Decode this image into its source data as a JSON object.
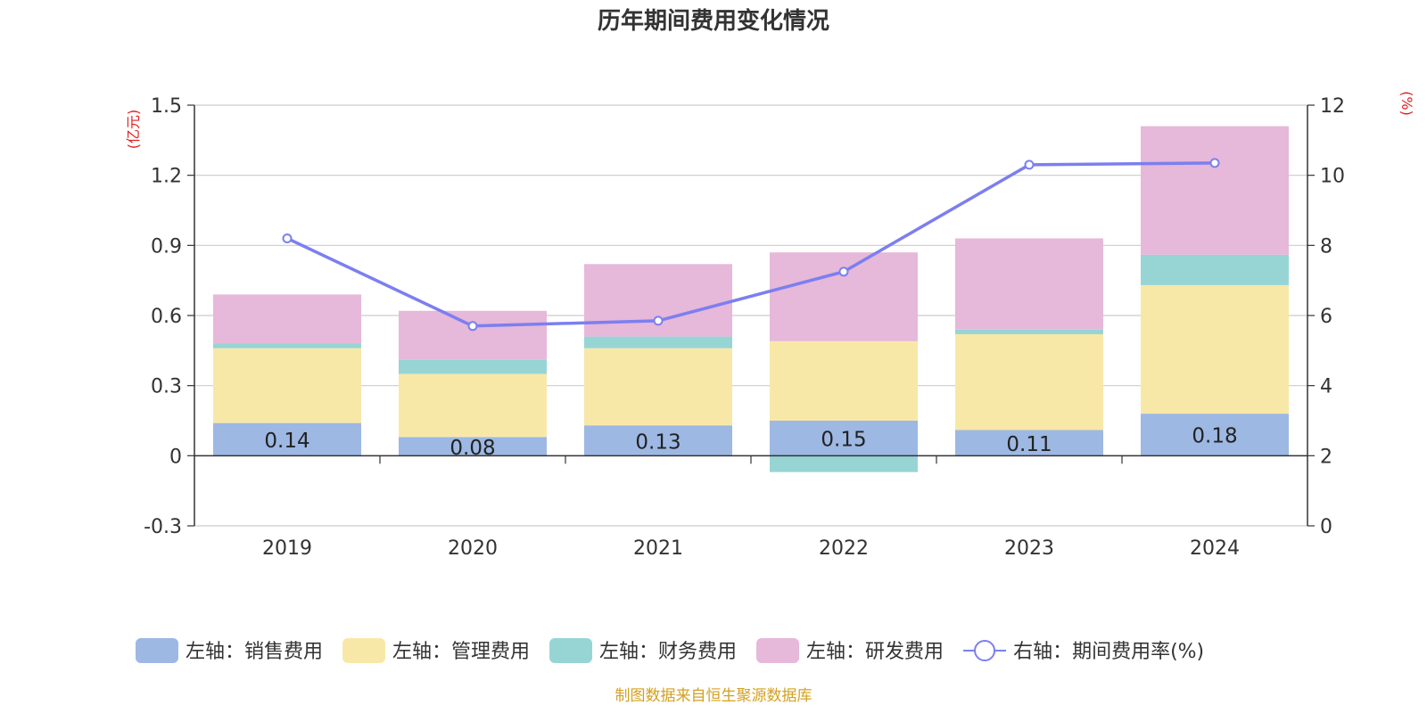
{
  "chart_data": {
    "type": "bar",
    "title": "历年期间费用变化情况",
    "categories": [
      "2019",
      "2020",
      "2021",
      "2022",
      "2023",
      "2024"
    ],
    "y_left": {
      "unit_label": "(亿元)",
      "ylim": [
        -0.3,
        1.5
      ],
      "ticks": [
        "-0.3",
        "0",
        "0.3",
        "0.6",
        "0.9",
        "1.2",
        "1.5"
      ]
    },
    "y_right": {
      "unit_label": "(%)",
      "ylim": [
        0,
        12
      ],
      "ticks": [
        "0",
        "2",
        "4",
        "6",
        "8",
        "10",
        "12"
      ]
    },
    "series": [
      {
        "name": "左轴：销售费用",
        "type": "bar",
        "axis": "left",
        "color": "#9db8e3",
        "values": [
          0.14,
          0.08,
          0.13,
          0.15,
          0.11,
          0.18
        ],
        "labels": [
          "0.14",
          "0.08",
          "0.13",
          "0.15",
          "0.11",
          "0.18"
        ]
      },
      {
        "name": "左轴：管理费用",
        "type": "bar",
        "axis": "left",
        "color": "#f8e8a8",
        "values": [
          0.32,
          0.27,
          0.33,
          0.34,
          0.41,
          0.55
        ]
      },
      {
        "name": "左轴：财务费用",
        "type": "bar",
        "axis": "left",
        "color": "#97d5d5",
        "values": [
          0.02,
          0.06,
          0.05,
          -0.07,
          0.02,
          0.13
        ]
      },
      {
        "name": "左轴：研发费用",
        "type": "bar",
        "axis": "left",
        "color": "#e6b8d9",
        "values": [
          0.21,
          0.21,
          0.31,
          0.38,
          0.39,
          0.55
        ]
      },
      {
        "name": "右轴：期间费用率(%)",
        "type": "line",
        "axis": "right",
        "color": "#7b7ff0",
        "values": [
          8.2,
          5.7,
          5.85,
          7.25,
          10.3,
          10.35
        ]
      }
    ],
    "grid": true,
    "legend_position": "bottom"
  },
  "footer": {
    "source": "制图数据来自恒生聚源数据库"
  }
}
